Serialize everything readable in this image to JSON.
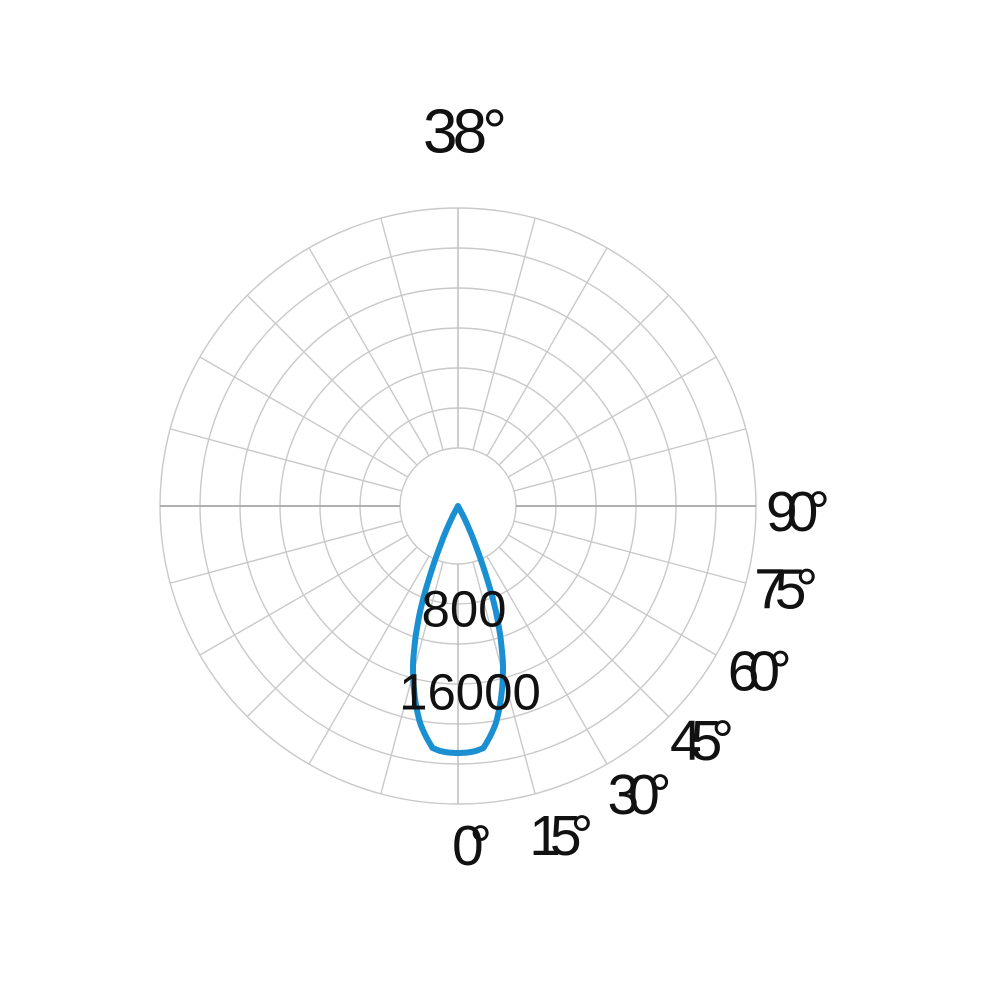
{
  "title": "38°",
  "chart_data": {
    "type": "polar",
    "subtype": "photometric_intensity_distribution",
    "title": "38°",
    "beam_angle_full_deg": 38,
    "angle_unit": "degrees",
    "angle_ticks_deg": [
      0,
      15,
      30,
      45,
      60,
      75,
      90
    ],
    "angle_tick_labels": [
      "0°",
      "15°",
      "30°",
      "45°",
      "60°",
      "75°",
      "90°"
    ],
    "ring_value_labels": [
      {
        "text": "800",
        "ring_index": 1
      },
      {
        "text": "16000",
        "ring_index": 3
      }
    ],
    "grid": {
      "ring_count": 7,
      "spoke_step_deg": 15,
      "full_circle": true,
      "inner_radius_fraction": 0.195,
      "legend_position": "none",
      "gridlines": "on"
    },
    "series": [
      {
        "name": "intensity-lobe",
        "direction": "downward-from-nadir",
        "peak_radius_fraction_of_outer_ring": 0.829,
        "samples_angle_deg_vs_fraction_of_peak": [
          [
            0,
            1.0
          ],
          [
            2,
            0.999
          ],
          [
            4,
            0.995
          ],
          [
            6,
            0.985
          ],
          [
            8,
            0.94
          ],
          [
            10,
            0.89
          ],
          [
            12,
            0.82
          ],
          [
            14,
            0.745
          ],
          [
            16,
            0.66
          ],
          [
            18,
            0.555
          ],
          [
            20,
            0.44
          ],
          [
            22,
            0.3
          ],
          [
            24,
            0.18
          ],
          [
            26,
            0.1
          ],
          [
            27.5,
            0.045
          ],
          [
            28.8,
            0.0
          ]
        ]
      }
    ]
  },
  "colors": {
    "background": "#ffffff",
    "grid": "#c9c9c9",
    "horizontal_axis": "#a6a6a6",
    "vertical_axis": "#bdbdbd",
    "curve": "#1a8fd1",
    "text": "#111111"
  }
}
